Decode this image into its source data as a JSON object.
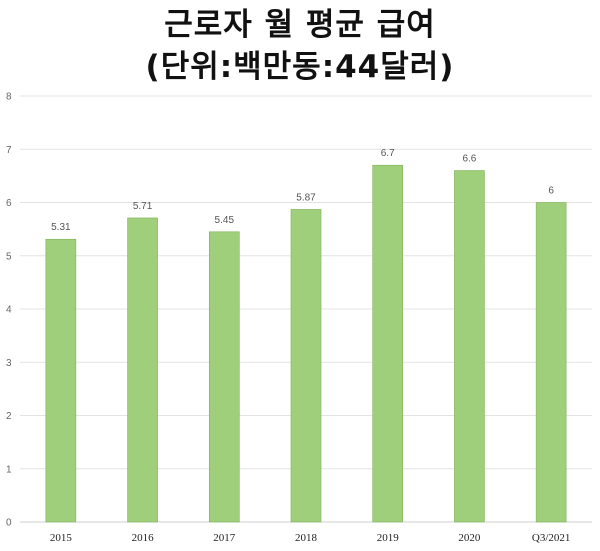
{
  "title": {
    "line1": "근로자 월 평균 급여",
    "line2": "(단위:백만동:44달러)"
  },
  "colors": {
    "bar_fill": "#9fcf7a",
    "bar_stroke": "#7fb35a",
    "grid": "#e3e3e3",
    "axis": "#cfcfcf"
  },
  "chart_data": {
    "type": "bar",
    "title": "근로자 월 평균 급여 (단위:백만동:44달러)",
    "categories": [
      "2015",
      "2016",
      "2017",
      "2018",
      "2019",
      "2020",
      "Q3/2021"
    ],
    "values": [
      5.31,
      5.71,
      5.45,
      5.87,
      6.7,
      6.6,
      6
    ],
    "data_labels": [
      "5.31",
      "5.71",
      "5.45",
      "5.87",
      "6.7",
      "6.6",
      "6"
    ],
    "yticks": [
      "0",
      "1",
      "2",
      "3",
      "4",
      "5",
      "6",
      "7",
      "8"
    ],
    "ylim": [
      0,
      8
    ],
    "xlabel": "",
    "ylabel": "",
    "grid": true,
    "legend": "none"
  }
}
